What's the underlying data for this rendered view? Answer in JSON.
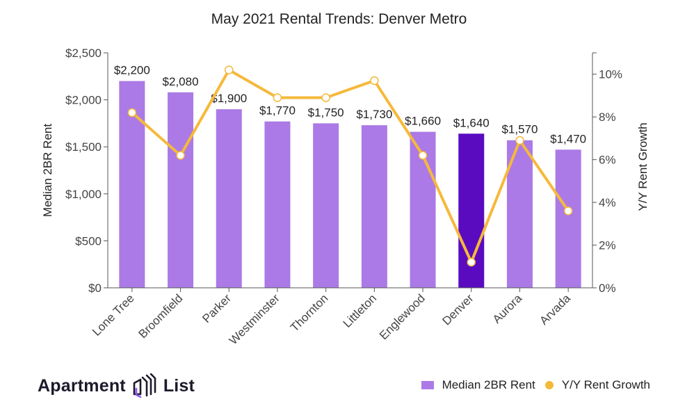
{
  "chart_data": {
    "type": "bar+line",
    "title": "May 2021 Rental Trends: Denver Metro",
    "categories": [
      "Lone Tree",
      "Broomfield",
      "Parker",
      "Westminster",
      "Thornton",
      "Littleton",
      "Englewood",
      "Denver",
      "Aurora",
      "Arvada"
    ],
    "series": [
      {
        "name": "Median 2BR Rent",
        "type": "bar",
        "axis": "left",
        "values": [
          2200,
          2080,
          1900,
          1770,
          1750,
          1730,
          1660,
          1640,
          1570,
          1470
        ],
        "labels": [
          "$2,200",
          "$2,080",
          "$1,900",
          "$1,770",
          "$1,750",
          "$1,730",
          "$1,660",
          "$1,640",
          "$1,570",
          "$1,470"
        ],
        "color": "#ab7ae6",
        "highlight_category": "Denver",
        "highlight_color": "#5a0bc0"
      },
      {
        "name": "Y/Y Rent Growth",
        "type": "line",
        "axis": "right",
        "values": [
          8.2,
          6.2,
          10.2,
          8.9,
          8.9,
          9.7,
          6.2,
          1.2,
          6.9,
          3.6
        ],
        "color": "#f5b93a"
      }
    ],
    "ylabel": "Median 2BR Rent",
    "ylim": [
      0,
      2500
    ],
    "yticks": [
      "$0",
      "$500",
      "$1,000",
      "$1,500",
      "$2,000",
      "$2,500"
    ],
    "ytick_values": [
      0,
      500,
      1000,
      1500,
      2000,
      2500
    ],
    "y2label": "Y/Y Rent Growth",
    "y2lim": [
      0,
      11
    ],
    "y2ticks": [
      "0%",
      "2%",
      "4%",
      "6%",
      "8%",
      "10%"
    ],
    "y2tick_values": [
      0,
      2,
      4,
      6,
      8,
      10
    ],
    "grid": false,
    "legend_position": "bottom-right"
  },
  "legend": {
    "bar_label": "Median 2BR Rent",
    "line_label": "Y/Y Rent Growth"
  },
  "branding": {
    "logo_text_left": "Apartment",
    "logo_text_right": "List"
  }
}
